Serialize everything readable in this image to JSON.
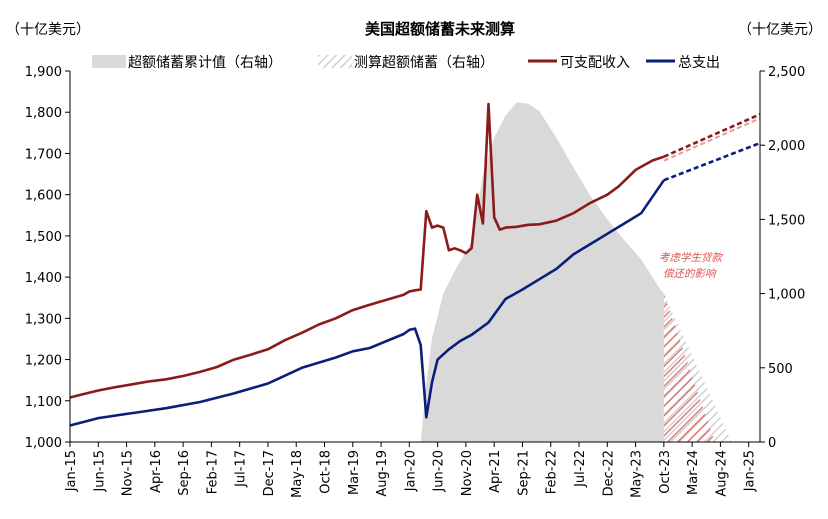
{
  "chart_data": {
    "type": "line",
    "title": "美国超额储蓄未来测算",
    "left_unit": "（十亿美元）",
    "right_unit": "（十亿美元）",
    "left_axis": {
      "min": 1000,
      "max": 1900,
      "step": 100,
      "labels": [
        "1,000",
        "1,100",
        "1,200",
        "1,300",
        "1,400",
        "1,500",
        "1,600",
        "1,700",
        "1,800",
        "1,900"
      ]
    },
    "right_axis": {
      "min": 0,
      "max": 2500,
      "step": 500,
      "labels": [
        "0",
        "500",
        "1,000",
        "1,500",
        "2,000",
        "2,500"
      ]
    },
    "x_axis": {
      "start": "Jan-15",
      "end": "Mar-25",
      "tick_labels": [
        "Jan-15",
        "Jun-15",
        "Nov-15",
        "Apr-16",
        "Sep-16",
        "Feb-17",
        "Jul-17",
        "Dec-17",
        "May-18",
        "Oct-18",
        "Mar-19",
        "Aug-19",
        "Jan-20",
        "Jun-20",
        "Nov-20",
        "Apr-21",
        "Sep-21",
        "Feb-22",
        "Jul-22",
        "Dec-22",
        "May-23",
        "Oct-23",
        "Mar-24",
        "Aug-24",
        "Jan-25"
      ]
    },
    "legend": {
      "position": "top",
      "items": [
        {
          "label": "超额储蓄累计值（右轴）",
          "kind": "area",
          "color": "#d9d9d9"
        },
        {
          "label": "测算超额储蓄（右轴）",
          "kind": "hatch",
          "color": "#d9d9d9"
        },
        {
          "label": "可支配收入",
          "kind": "line",
          "color": "#8b1a1a"
        },
        {
          "label": "总支出",
          "kind": "line",
          "color": "#0b1f7a"
        }
      ]
    },
    "annotation": {
      "lines": [
        "考虑学生贷款",
        "偿还的影响"
      ]
    },
    "series": [
      {
        "name": "可支配收入",
        "axis": "left",
        "color": "#8b1a1a",
        "points": [
          [
            "2015-01",
            1108
          ],
          [
            "2015-03",
            1115
          ],
          [
            "2015-06",
            1125
          ],
          [
            "2015-09",
            1133
          ],
          [
            "2015-12",
            1140
          ],
          [
            "2016-03",
            1147
          ],
          [
            "2016-06",
            1152
          ],
          [
            "2016-09",
            1160
          ],
          [
            "2016-12",
            1170
          ],
          [
            "2017-03",
            1182
          ],
          [
            "2017-06",
            1200
          ],
          [
            "2017-09",
            1212
          ],
          [
            "2017-12",
            1225
          ],
          [
            "2018-03",
            1247
          ],
          [
            "2018-06",
            1265
          ],
          [
            "2018-09",
            1285
          ],
          [
            "2018-12",
            1300
          ],
          [
            "2019-03",
            1320
          ],
          [
            "2019-06",
            1333
          ],
          [
            "2019-09",
            1345
          ],
          [
            "2019-12",
            1357
          ],
          [
            "2020-01",
            1365
          ],
          [
            "2020-02",
            1368
          ],
          [
            "2020-03",
            1370
          ],
          [
            "2020-04",
            1560
          ],
          [
            "2020-05",
            1520
          ],
          [
            "2020-06",
            1525
          ],
          [
            "2020-07",
            1520
          ],
          [
            "2020-08",
            1465
          ],
          [
            "2020-09",
            1470
          ],
          [
            "2020-10",
            1465
          ],
          [
            "2020-11",
            1458
          ],
          [
            "2020-12",
            1470
          ],
          [
            "2021-01",
            1600
          ],
          [
            "2021-02",
            1530
          ],
          [
            "2021-03",
            1820
          ],
          [
            "2021-04",
            1545
          ],
          [
            "2021-05",
            1515
          ],
          [
            "2021-06",
            1520
          ],
          [
            "2021-08",
            1522
          ],
          [
            "2021-10",
            1527
          ],
          [
            "2021-12",
            1528
          ],
          [
            "2022-03",
            1537
          ],
          [
            "2022-06",
            1555
          ],
          [
            "2022-09",
            1580
          ],
          [
            "2022-12",
            1600
          ],
          [
            "2023-02",
            1620
          ],
          [
            "2023-05",
            1660
          ],
          [
            "2023-08",
            1683
          ],
          [
            "2023-10",
            1692
          ]
        ],
        "projection": [
          [
            "2023-10",
            1692
          ],
          [
            "2025-03",
            1795
          ]
        ]
      },
      {
        "name": "总支出",
        "axis": "left",
        "color": "#0b1f7a",
        "points": [
          [
            "2015-01",
            1040
          ],
          [
            "2015-06",
            1058
          ],
          [
            "2015-12",
            1070
          ],
          [
            "2016-06",
            1082
          ],
          [
            "2016-12",
            1097
          ],
          [
            "2017-06",
            1118
          ],
          [
            "2017-12",
            1142
          ],
          [
            "2018-06",
            1180
          ],
          [
            "2018-12",
            1205
          ],
          [
            "2019-03",
            1220
          ],
          [
            "2019-06",
            1228
          ],
          [
            "2019-09",
            1245
          ],
          [
            "2019-12",
            1262
          ],
          [
            "2020-01",
            1272
          ],
          [
            "2020-02",
            1275
          ],
          [
            "2020-03",
            1235
          ],
          [
            "2020-04",
            1060
          ],
          [
            "2020-05",
            1145
          ],
          [
            "2020-06",
            1200
          ],
          [
            "2020-08",
            1225
          ],
          [
            "2020-10",
            1245
          ],
          [
            "2020-12",
            1260
          ],
          [
            "2021-03",
            1290
          ],
          [
            "2021-06",
            1347
          ],
          [
            "2021-09",
            1370
          ],
          [
            "2021-12",
            1395
          ],
          [
            "2022-03",
            1420
          ],
          [
            "2022-06",
            1455
          ],
          [
            "2022-09",
            1480
          ],
          [
            "2022-12",
            1505
          ],
          [
            "2023-03",
            1530
          ],
          [
            "2023-06",
            1555
          ],
          [
            "2023-10",
            1635
          ]
        ],
        "projection": [
          [
            "2023-10",
            1635
          ],
          [
            "2025-03",
            1725
          ]
        ]
      },
      {
        "name": "超额储蓄累计值（右轴）",
        "axis": "right",
        "type": "area",
        "color": "#d9d9d9",
        "points": [
          [
            "2020-03",
            0
          ],
          [
            "2020-04",
            400
          ],
          [
            "2020-05",
            700
          ],
          [
            "2020-07",
            1000
          ],
          [
            "2020-09",
            1150
          ],
          [
            "2020-12",
            1350
          ],
          [
            "2021-02",
            1800
          ],
          [
            "2021-04",
            2050
          ],
          [
            "2021-06",
            2200
          ],
          [
            "2021-08",
            2290
          ],
          [
            "2021-10",
            2280
          ],
          [
            "2021-12",
            2230
          ],
          [
            "2022-03",
            2050
          ],
          [
            "2022-06",
            1850
          ],
          [
            "2022-09",
            1660
          ],
          [
            "2022-12",
            1500
          ],
          [
            "2023-03",
            1360
          ],
          [
            "2023-06",
            1230
          ],
          [
            "2023-09",
            1050
          ],
          [
            "2023-10",
            1000
          ]
        ]
      },
      {
        "name": "测算超额储蓄（右轴）",
        "axis": "right",
        "type": "hatched-area",
        "color": "#d9d9d9",
        "points": [
          [
            "2023-10",
            1000
          ],
          [
            "2024-10",
            0
          ]
        ]
      },
      {
        "name": "测算超额储蓄（考虑学生贷款偿还）",
        "axis": "right",
        "type": "hatched-area",
        "color": "#e06666",
        "points": [
          [
            "2023-10",
            1000
          ],
          [
            "2024-07",
            0
          ]
        ]
      }
    ]
  }
}
